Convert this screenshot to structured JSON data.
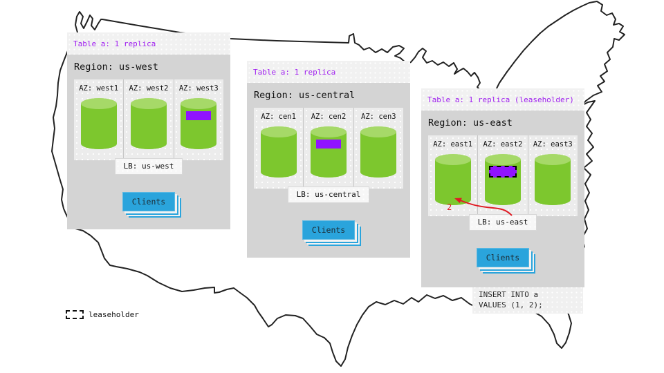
{
  "colors": {
    "accent_purple": "#a020f0",
    "replica_purple": "#9013fe",
    "cylinder_green": "#7dc72e",
    "cylinder_green_top": "#a6d968",
    "clients_blue": "#2aa4dc",
    "arrow_red": "#e01b24"
  },
  "regions": [
    {
      "table_label": "Table a: 1 replica",
      "region_label": "Region: us-west",
      "azs": [
        {
          "label": "AZ: west1",
          "replica": false,
          "leaseholder": false
        },
        {
          "label": "AZ: west2",
          "replica": false,
          "leaseholder": false
        },
        {
          "label": "AZ: west3",
          "replica": true,
          "leaseholder": false
        }
      ],
      "lb_label": "LB: us-west",
      "clients_label": "Clients"
    },
    {
      "table_label": "Table a: 1 replica",
      "region_label": "Region: us-central",
      "azs": [
        {
          "label": "AZ: cen1",
          "replica": false,
          "leaseholder": false
        },
        {
          "label": "AZ: cen2",
          "replica": true,
          "leaseholder": false
        },
        {
          "label": "AZ: cen3",
          "replica": false,
          "leaseholder": false
        }
      ],
      "lb_label": "LB: us-central",
      "clients_label": "Clients"
    },
    {
      "table_label": "Table a: 1 replica (leaseholder)",
      "region_label": "Region: us-east",
      "azs": [
        {
          "label": "AZ: east1",
          "replica": false,
          "leaseholder": false
        },
        {
          "label": "AZ: east2",
          "replica": true,
          "leaseholder": true
        },
        {
          "label": "AZ: east3",
          "replica": false,
          "leaseholder": false
        }
      ],
      "lb_label": "LB: us-east",
      "clients_label": "Clients",
      "arrow_label": "2"
    }
  ],
  "sql_note": {
    "lines": [
      "INSERT INTO a",
      "VALUES (1, 2);"
    ]
  },
  "legend": {
    "label": "leaseholder"
  }
}
